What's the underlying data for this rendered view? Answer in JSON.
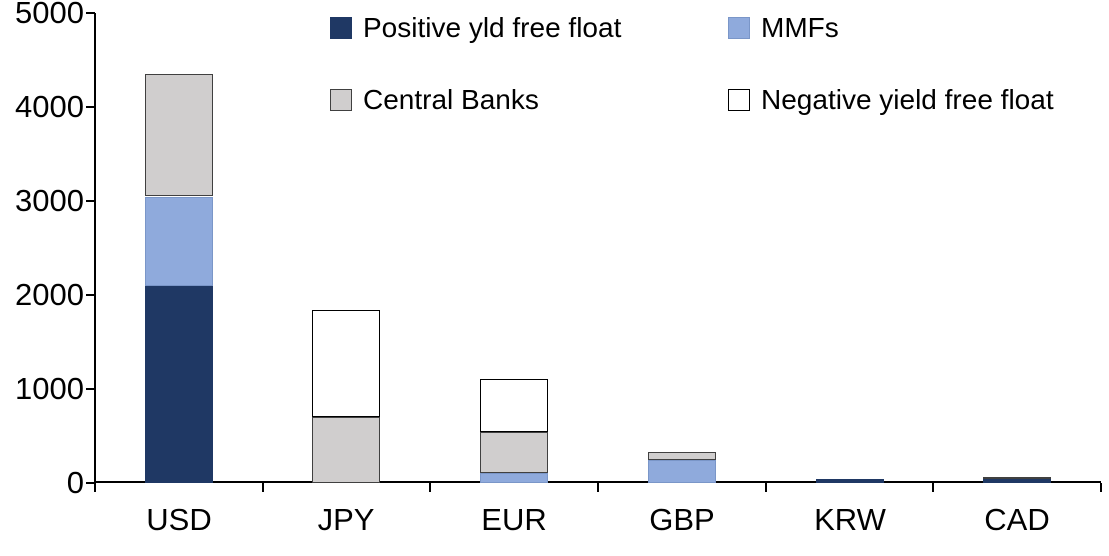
{
  "chart_data": {
    "type": "bar",
    "stacked": true,
    "title": "",
    "xlabel": "",
    "ylabel": "",
    "categories": [
      "USD",
      "JPY",
      "EUR",
      "GBP",
      "KRW",
      "CAD"
    ],
    "series": [
      {
        "name": "Positive yld free float",
        "color": "#1F3864",
        "border_color": "#1F3864",
        "values": [
          2100,
          0,
          0,
          0,
          40,
          40
        ]
      },
      {
        "name": "MMFs",
        "color": "#8FAADC",
        "border_color": "#7A96C8",
        "values": [
          950,
          0,
          110,
          240,
          0,
          0
        ]
      },
      {
        "name": "Central Banks",
        "color": "#D0CECE",
        "border_color": "#404040",
        "values": [
          1300,
          700,
          435,
          90,
          0,
          20
        ]
      },
      {
        "name": "Negative yield free float",
        "color": "#FFFFFF",
        "border_color": "#000000",
        "values": [
          0,
          1140,
          565,
          0,
          0,
          0
        ]
      }
    ],
    "ylim": [
      0,
      5000
    ],
    "ytick_step": 1000,
    "ytick_labels": [
      "0",
      "1000",
      "2000",
      "3000",
      "4000",
      "5000"
    ],
    "grid": false,
    "legend_position": "top",
    "axis_color": "#000000",
    "background_color": "#FFFFFF"
  },
  "legend": {
    "items": [
      {
        "label": "Positive yld free float",
        "color": "#1F3864",
        "border_color": "#1F3864"
      },
      {
        "label": "MMFs",
        "color": "#8FAADC",
        "border_color": "#7A96C8"
      },
      {
        "label": "Central Banks",
        "color": "#D0CECE",
        "border_color": "#404040"
      },
      {
        "label": "Negative yield free float",
        "color": "#FFFFFF",
        "border_color": "#000000"
      }
    ]
  }
}
